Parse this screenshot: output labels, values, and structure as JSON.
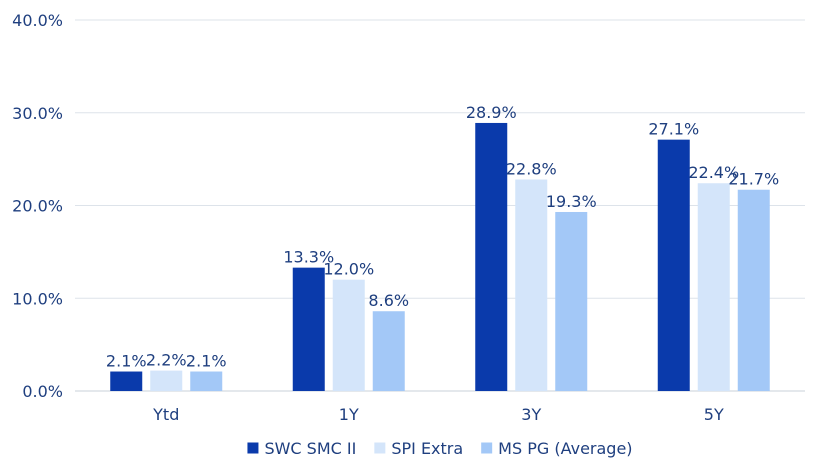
{
  "chart_data": {
    "type": "bar",
    "title": "",
    "xlabel": "",
    "ylabel": "",
    "ylim": [
      0,
      40
    ],
    "yticks": [
      "0.0%",
      "10.0%",
      "20.0%",
      "30.0%",
      "40.0%"
    ],
    "ytick_values": [
      0,
      10,
      20,
      30,
      40
    ],
    "grid": true,
    "legend_position": "bottom",
    "categories": [
      "Ytd",
      "1Y",
      "3Y",
      "5Y"
    ],
    "series": [
      {
        "name": "SWC SMC II",
        "color": "#0a3aab",
        "values": [
          2.1,
          13.3,
          28.9,
          27.1
        ],
        "labels": [
          "2.1%",
          "13.3%",
          "28.9%",
          "27.1%"
        ]
      },
      {
        "name": "SPI Extra",
        "color": "#d4e5fa",
        "values": [
          2.2,
          12.0,
          22.8,
          22.4
        ],
        "labels": [
          "2.2%",
          "12.0%",
          "22.8%",
          "22.4%"
        ]
      },
      {
        "name": "MS PG (Average)",
        "color": "#a3c8f7",
        "values": [
          2.1,
          8.6,
          19.3,
          21.7
        ],
        "labels": [
          "2.1%",
          "8.6%",
          "19.3%",
          "21.7%"
        ]
      }
    ]
  }
}
